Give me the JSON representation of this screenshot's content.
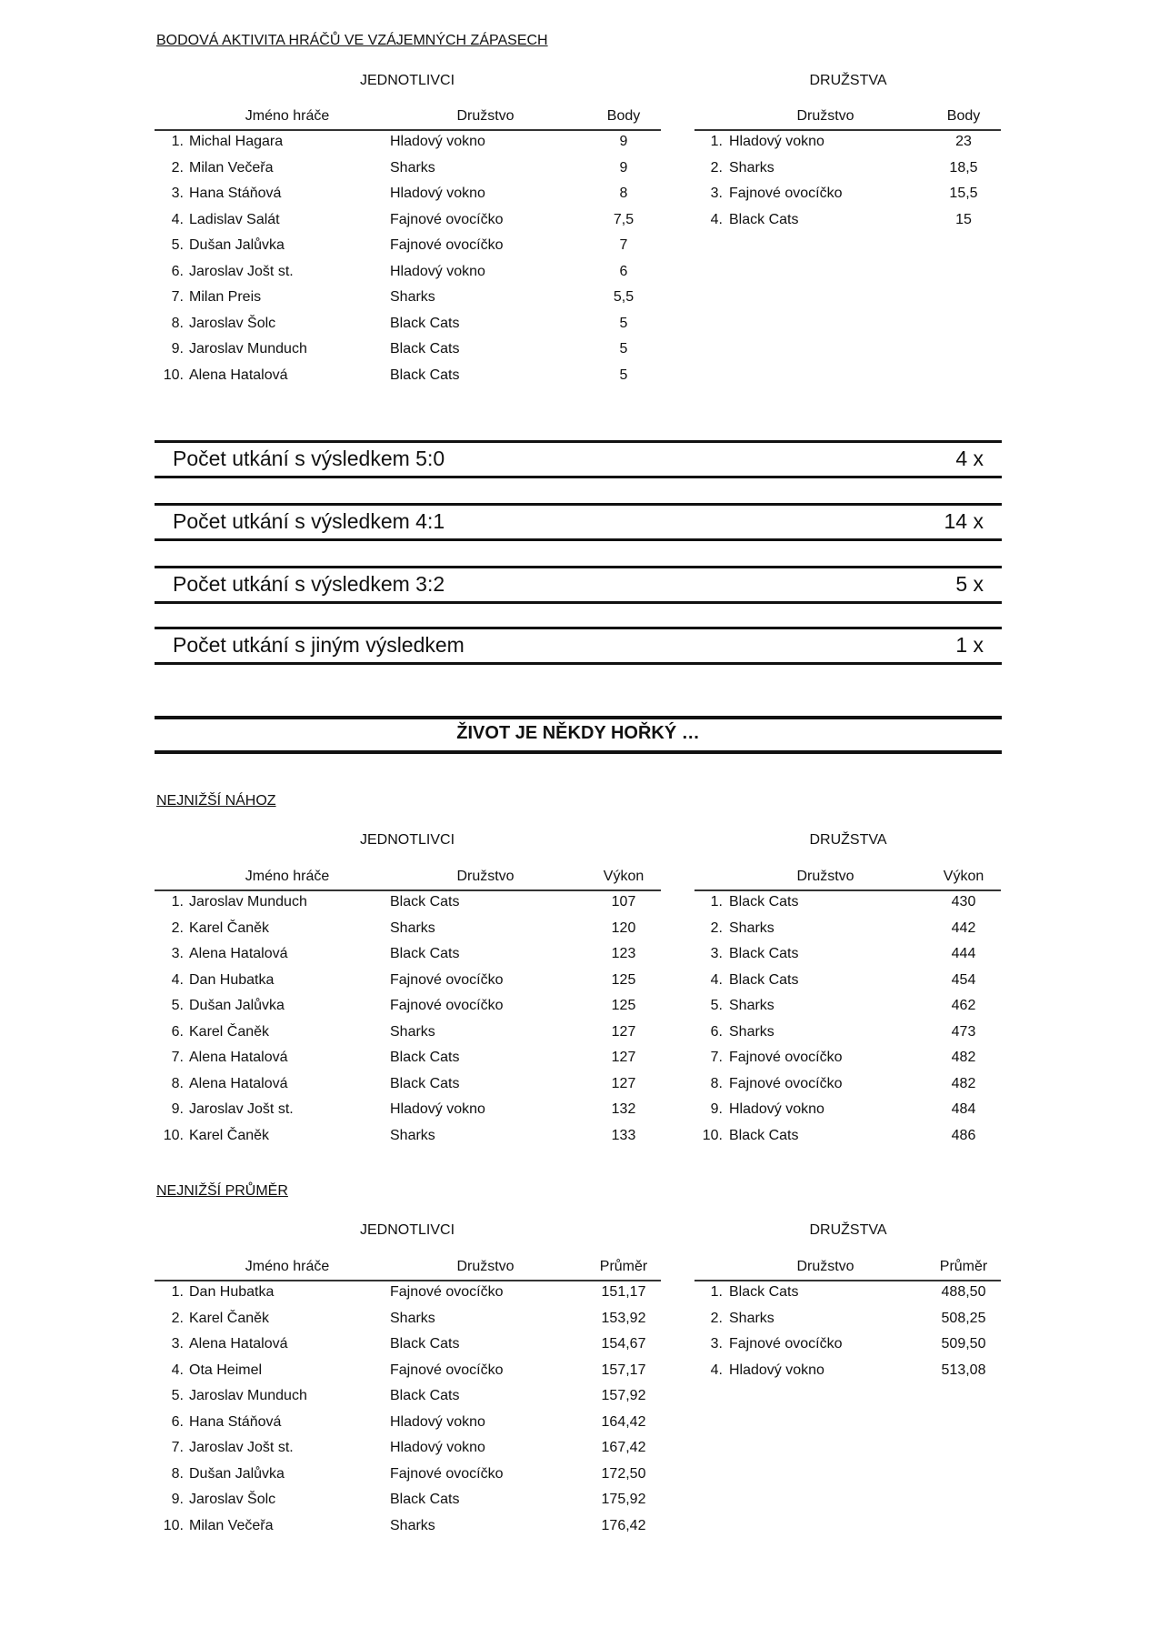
{
  "sections": [
    {
      "title": "BODOVÁ AKTIVITA HRÁČŮ VE VZÁJEMNÝCH ZÁPASECH",
      "left_subtitle": "JEDNOTLIVCI",
      "right_subtitle": "DRUŽSTVA",
      "left_headers": [
        "Jméno hráče",
        "Družstvo",
        "Body"
      ],
      "right_headers": [
        "Družstvo",
        "Body"
      ],
      "left_rows": [
        [
          "1.",
          "Michal Hagara",
          "Hladový vokno",
          "9"
        ],
        [
          "2.",
          "Milan Večeřa",
          "Sharks",
          "9"
        ],
        [
          "3.",
          "Hana Stáňová",
          "Hladový vokno",
          "8"
        ],
        [
          "4.",
          "Ladislav Salát",
          "Fajnové ovocíčko",
          "7,5"
        ],
        [
          "5.",
          "Dušan Jalůvka",
          "Fajnové ovocíčko",
          "7"
        ],
        [
          "6.",
          "Jaroslav Jošt st.",
          "Hladový vokno",
          "6"
        ],
        [
          "7.",
          "Milan Preis",
          "Sharks",
          "5,5"
        ],
        [
          "8.",
          "Jaroslav Šolc",
          "Black Cats",
          "5"
        ],
        [
          "9.",
          "Jaroslav Munduch",
          "Black Cats",
          "5"
        ],
        [
          "10.",
          "Alena Hatalová",
          "Black Cats",
          "5"
        ]
      ],
      "right_rows": [
        [
          "1.",
          "Hladový vokno",
          "23"
        ],
        [
          "2.",
          "Sharks",
          "18,5"
        ],
        [
          "3.",
          "Fajnové ovocíčko",
          "15,5"
        ],
        [
          "4.",
          "Black Cats",
          "15"
        ]
      ]
    },
    {
      "title": "NEJNIŽŠÍ NÁHOZ",
      "left_subtitle": "JEDNOTLIVCI",
      "right_subtitle": "DRUŽSTVA",
      "left_headers": [
        "Jméno hráče",
        "Družstvo",
        "Výkon"
      ],
      "right_headers": [
        "Družstvo",
        "Výkon"
      ],
      "left_rows": [
        [
          "1.",
          "Jaroslav Munduch",
          "Black Cats",
          "107"
        ],
        [
          "2.",
          "Karel Čaněk",
          "Sharks",
          "120"
        ],
        [
          "3.",
          "Alena Hatalová",
          "Black Cats",
          "123"
        ],
        [
          "4.",
          "Dan Hubatka",
          "Fajnové ovocíčko",
          "125"
        ],
        [
          "5.",
          "Dušan Jalůvka",
          "Fajnové ovocíčko",
          "125"
        ],
        [
          "6.",
          "Karel Čaněk",
          "Sharks",
          "127"
        ],
        [
          "7.",
          "Alena Hatalová",
          "Black Cats",
          "127"
        ],
        [
          "8.",
          "Alena Hatalová",
          "Black Cats",
          "127"
        ],
        [
          "9.",
          "Jaroslav Jošt st.",
          "Hladový vokno",
          "132"
        ],
        [
          "10.",
          "Karel Čaněk",
          "Sharks",
          "133"
        ]
      ],
      "right_rows": [
        [
          "1.",
          "Black Cats",
          "430"
        ],
        [
          "2.",
          "Sharks",
          "442"
        ],
        [
          "3.",
          "Black Cats",
          "444"
        ],
        [
          "4.",
          "Black Cats",
          "454"
        ],
        [
          "5.",
          "Sharks",
          "462"
        ],
        [
          "6.",
          "Sharks",
          "473"
        ],
        [
          "7.",
          "Fajnové ovocíčko",
          "482"
        ],
        [
          "8.",
          "Fajnové ovocíčko",
          "482"
        ],
        [
          "9.",
          "Hladový vokno",
          "484"
        ],
        [
          "10.",
          "Black Cats",
          "486"
        ]
      ]
    },
    {
      "title": "NEJNIŽŠÍ PRŮMĚR",
      "left_subtitle": "JEDNOTLIVCI",
      "right_subtitle": "DRUŽSTVA",
      "left_headers": [
        "Jméno hráče",
        "Družstvo",
        "Průměr"
      ],
      "right_headers": [
        "Družstvo",
        "Průměr"
      ],
      "left_rows": [
        [
          "1.",
          "Dan Hubatka",
          "Fajnové ovocíčko",
          "151,17"
        ],
        [
          "2.",
          "Karel Čaněk",
          "Sharks",
          "153,92"
        ],
        [
          "3.",
          "Alena Hatalová",
          "Black Cats",
          "154,67"
        ],
        [
          "4.",
          "Ota Heimel",
          "Fajnové ovocíčko",
          "157,17"
        ],
        [
          "5.",
          "Jaroslav Munduch",
          "Black Cats",
          "157,92"
        ],
        [
          "6.",
          "Hana Stáňová",
          "Hladový vokno",
          "164,42"
        ],
        [
          "7.",
          "Jaroslav Jošt st.",
          "Hladový vokno",
          "167,42"
        ],
        [
          "8.",
          "Dušan Jalůvka",
          "Fajnové ovocíčko",
          "172,50"
        ],
        [
          "9.",
          "Jaroslav Šolc",
          "Black Cats",
          "175,92"
        ],
        [
          "10.",
          "Milan Večeřa",
          "Sharks",
          "176,42"
        ]
      ],
      "right_rows": [
        [
          "1.",
          "Black Cats",
          "488,50"
        ],
        [
          "2.",
          "Sharks",
          "508,25"
        ],
        [
          "3.",
          "Fajnové ovocíčko",
          "509,50"
        ],
        [
          "4.",
          "Hladový vokno",
          "513,08"
        ]
      ]
    }
  ],
  "summary": [
    {
      "label": "Počet utkání s výsledkem 5:0",
      "count": "4 x"
    },
    {
      "label": "Počet utkání s výsledkem 4:1",
      "count": "14 x"
    },
    {
      "label": "Počet utkání s výsledkem 3:2",
      "count": "5 x"
    },
    {
      "label": "Počet utkání s jiným výsledkem",
      "count": "1 x"
    }
  ],
  "banner": "ŽIVOT JE NĚKDY HOŘKÝ …"
}
